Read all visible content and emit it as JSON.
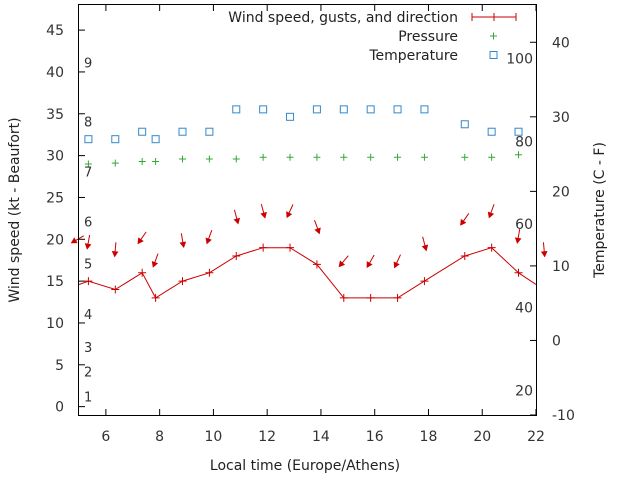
{
  "chart_data": {
    "type": "line",
    "xlabel": "Local time (Europe/Athens)",
    "ylabel": "Wind speed (kt - Beaufort)",
    "y2label": "Temperature (C - F)",
    "xlim": [
      5,
      22
    ],
    "ylim": [
      -1,
      48
    ],
    "y2lim": [
      -10,
      45
    ],
    "xticks": [
      6,
      8,
      10,
      12,
      14,
      16,
      18,
      20,
      22
    ],
    "yticks": [
      0,
      5,
      10,
      15,
      20,
      25,
      30,
      35,
      40,
      45
    ],
    "y2ticks": [
      -10,
      0,
      10,
      20,
      30,
      40
    ],
    "beaufort_labels": [
      {
        "label": "1",
        "kt": 1.2
      },
      {
        "label": "2",
        "kt": 4.2
      },
      {
        "label": "3",
        "kt": 7.1
      },
      {
        "label": "4",
        "kt": 11.1
      },
      {
        "label": "5",
        "kt": 17.1
      },
      {
        "label": "6",
        "kt": 22.1
      },
      {
        "label": "7",
        "kt": 28.1
      },
      {
        "label": "8",
        "kt": 34.1
      },
      {
        "label": "9",
        "kt": 41.1
      }
    ],
    "fahrenheit_labels": [
      {
        "label": "20",
        "c": -6.7
      },
      {
        "label": "40",
        "c": 4.4
      },
      {
        "label": "60",
        "c": 15.6
      },
      {
        "label": "80",
        "c": 26.7
      },
      {
        "label": "100",
        "c": 37.8
      }
    ],
    "legend": {
      "position": "top-right",
      "wind_label": "Wind speed, gusts, and direction",
      "pressure_label": "Pressure",
      "temperature_label": "Temperature"
    },
    "colors": {
      "wind": "#cc0000",
      "pressure": "#33aa33",
      "temperature": "#3388cc"
    },
    "series": [
      {
        "name": "Wind speed, gusts, and direction",
        "axis": "left",
        "x": [
          5,
          5.35,
          6.35,
          7.35,
          7.85,
          8.85,
          9.85,
          10.85,
          11.85,
          12.85,
          13.85,
          14.85,
          15.85,
          16.85,
          17.85,
          19.35,
          20.35,
          21.35,
          22
        ],
        "y": [
          14.6,
          15,
          14,
          16,
          13,
          15,
          16,
          18,
          19,
          19,
          17,
          13,
          13,
          13,
          15,
          18,
          19,
          16,
          14.6
        ]
      },
      {
        "name": "Pressure",
        "axis": "left",
        "x": [
          5.35,
          6.35,
          7.35,
          7.85,
          8.85,
          9.85,
          10.85,
          11.85,
          12.85,
          13.85,
          14.85,
          15.85,
          16.85,
          17.85,
          19.35,
          20.35,
          21.35
        ],
        "y": [
          29,
          29.1,
          29.3,
          29.3,
          29.6,
          29.6,
          29.6,
          29.8,
          29.8,
          29.8,
          29.8,
          29.8,
          29.8,
          29.8,
          29.8,
          29.8,
          30.1
        ]
      },
      {
        "name": "Temperature",
        "axis": "right",
        "x": [
          5.35,
          6.35,
          7.35,
          7.85,
          8.85,
          9.85,
          10.85,
          11.85,
          12.85,
          13.85,
          14.85,
          15.85,
          16.85,
          17.85,
          19.35,
          20.35,
          21.35
        ],
        "y": [
          27,
          27,
          28,
          27,
          28,
          28,
          31,
          31,
          30,
          31,
          31,
          31,
          31,
          31,
          29,
          28,
          28
        ]
      }
    ],
    "wind_arrows": [
      {
        "x": 4.95,
        "y": 20.0,
        "dir_deg": 300
      },
      {
        "x": 5.35,
        "y": 19.7,
        "dir_deg": 350
      },
      {
        "x": 6.35,
        "y": 18.8,
        "dir_deg": 355
      },
      {
        "x": 7.35,
        "y": 20.2,
        "dir_deg": 325
      },
      {
        "x": 7.85,
        "y": 17.5,
        "dir_deg": 340
      },
      {
        "x": 8.85,
        "y": 19.9,
        "dir_deg": 10
      },
      {
        "x": 9.85,
        "y": 20.3,
        "dir_deg": 340
      },
      {
        "x": 10.85,
        "y": 22.7,
        "dir_deg": 15
      },
      {
        "x": 11.85,
        "y": 23.4,
        "dir_deg": 15
      },
      {
        "x": 12.85,
        "y": 23.4,
        "dir_deg": 335
      },
      {
        "x": 13.85,
        "y": 21.5,
        "dir_deg": 20
      },
      {
        "x": 14.85,
        "y": 17.4,
        "dir_deg": 320
      },
      {
        "x": 15.85,
        "y": 17.4,
        "dir_deg": 330
      },
      {
        "x": 16.85,
        "y": 17.4,
        "dir_deg": 335
      },
      {
        "x": 17.85,
        "y": 19.5,
        "dir_deg": 15
      },
      {
        "x": 19.35,
        "y": 22.4,
        "dir_deg": 325
      },
      {
        "x": 20.35,
        "y": 23.4,
        "dir_deg": 340
      },
      {
        "x": 21.35,
        "y": 20.4,
        "dir_deg": 350
      },
      {
        "x": 22.3,
        "y": 18.8,
        "dir_deg": 5
      }
    ]
  }
}
